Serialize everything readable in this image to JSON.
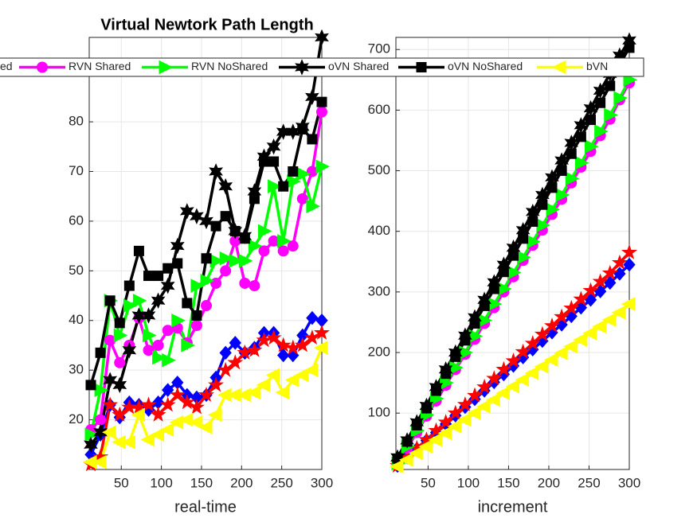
{
  "chart_data": [
    {
      "type": "line",
      "title": "Virtual Newtork Path Length",
      "xlabel": "real-time",
      "x": [
        12,
        24,
        36,
        48,
        60,
        72,
        84,
        96,
        108,
        120,
        132,
        144,
        156,
        168,
        180,
        192,
        204,
        216,
        228,
        240,
        252,
        264,
        276,
        288,
        300
      ],
      "xlim": [
        10,
        300
      ],
      "ylim": [
        10,
        97
      ],
      "xticks": [
        50,
        100,
        150,
        200,
        250,
        300
      ],
      "yticks": [
        20,
        30,
        40,
        50,
        60,
        70,
        80
      ],
      "grid": true,
      "series": [
        {
          "color": "#0000ff",
          "marker": "diamond",
          "values": [
            13,
            17,
            23,
            20.5,
            23.5,
            23,
            22,
            23.5,
            26,
            27.5,
            25,
            24.5,
            25,
            28.5,
            33.5,
            35.5,
            33.5,
            34.5,
            37.5,
            37.5,
            33,
            33,
            37,
            40.5,
            40
          ]
        },
        {
          "name": "ed",
          "color": "#ff0000",
          "marker": "star",
          "values": [
            11,
            12.5,
            23,
            21,
            22.5,
            22.5,
            23,
            21,
            23,
            25,
            23.5,
            22.5,
            25,
            27,
            30,
            31.5,
            33.5,
            34,
            36,
            36.5,
            35,
            34.5,
            35,
            36.5,
            37.5
          ]
        },
        {
          "name": "RVN Shared",
          "color": "#ff00ff",
          "marker": "circle",
          "values": [
            18,
            20,
            36,
            31.5,
            35,
            40.5,
            34,
            35,
            38,
            38.5,
            35.5,
            39,
            43,
            47.5,
            50,
            56,
            47.5,
            47,
            54,
            56,
            54,
            55,
            64.5,
            70,
            82
          ]
        },
        {
          "name": "RVN NoShared",
          "color": "#00ff00",
          "marker": "triangle-right",
          "values": [
            17,
            26,
            44,
            37,
            43,
            44,
            37,
            32.5,
            32,
            40,
            35,
            47,
            48,
            52,
            52.5,
            52,
            52,
            55,
            58,
            67,
            56,
            68,
            69.5,
            63,
            71
          ]
        },
        {
          "name": "oVN Shared",
          "color": "#000000",
          "marker": "hexagram",
          "values": [
            15,
            17.5,
            28,
            27,
            34,
            41,
            41,
            44,
            47,
            55,
            62,
            61,
            60,
            70,
            67,
            58,
            57,
            66,
            73,
            75,
            78,
            78,
            79,
            85,
            97
          ]
        },
        {
          "name": "oVN NoShared",
          "color": "#000000",
          "marker": "square",
          "values": [
            27,
            33.5,
            44,
            39.5,
            47,
            54,
            49,
            49,
            50.5,
            51.5,
            43.5,
            41,
            52.5,
            59,
            61,
            58,
            56.5,
            64.5,
            72,
            72,
            67,
            70,
            78.5,
            76.5,
            84
          ]
        },
        {
          "name": "bVN",
          "color": "#ffff00",
          "marker": "triangle-left",
          "values": [
            11.5,
            11.5,
            17.5,
            15.5,
            15.5,
            21,
            16,
            17,
            18,
            19.5,
            20,
            19.5,
            18.5,
            21,
            25,
            25,
            25,
            25.5,
            27,
            29,
            25.5,
            28,
            29,
            30,
            34.5
          ]
        }
      ]
    },
    {
      "type": "line",
      "xlabel": "increment",
      "x": [
        12,
        24,
        36,
        48,
        60,
        72,
        84,
        96,
        108,
        120,
        132,
        144,
        156,
        168,
        180,
        192,
        204,
        216,
        228,
        240,
        252,
        264,
        276,
        288,
        300
      ],
      "xlim": [
        10,
        300
      ],
      "ylim": [
        7,
        720
      ],
      "xticks": [
        50,
        100,
        150,
        200,
        250,
        300
      ],
      "yticks": [
        100,
        200,
        300,
        400,
        500,
        600,
        700
      ],
      "grid": true,
      "series": [
        {
          "color": "#0000ff",
          "marker": "diamond",
          "values": [
            13,
            27,
            41,
            55,
            68,
            82,
            96,
            110,
            123,
            137,
            151,
            164,
            178,
            192,
            205,
            219,
            233,
            246,
            260,
            274,
            287,
            301,
            315,
            330,
            345
          ]
        },
        {
          "color": "#ff0000",
          "marker": "star",
          "values": [
            13,
            27,
            42,
            56,
            71,
            85,
            100,
            114,
            129,
            143,
            157,
            172,
            186,
            201,
            215,
            230,
            244,
            259,
            273,
            288,
            302,
            317,
            331,
            348,
            365
          ]
        },
        {
          "color": "#ff00ff",
          "marker": "circle",
          "values": [
            17,
            42,
            68,
            95,
            120,
            146,
            172,
            197,
            222,
            248,
            274,
            300,
            325,
            352,
            377,
            402,
            428,
            453,
            480,
            506,
            532,
            558,
            585,
            617,
            645
          ]
        },
        {
          "color": "#00ff00",
          "marker": "triangle-right",
          "values": [
            17,
            45,
            71,
            97,
            124,
            150,
            175,
            200,
            227,
            253,
            280,
            305,
            332,
            357,
            383,
            410,
            436,
            460,
            487,
            513,
            540,
            565,
            592,
            620,
            650
          ]
        },
        {
          "color": "#000000",
          "marker": "hexagram",
          "values": [
            27,
            55,
            85,
            112,
            143,
            172,
            200,
            228,
            258,
            287,
            316,
            345,
            373,
            402,
            432,
            460,
            489,
            517,
            546,
            575,
            603,
            632,
            660,
            690,
            715
          ]
        },
        {
          "color": "#000000",
          "marker": "square",
          "values": [
            25,
            53,
            80,
            108,
            137,
            165,
            193,
            220,
            248,
            277,
            305,
            333,
            360,
            388,
            416,
            444,
            472,
            500,
            528,
            556,
            584,
            612,
            640,
            675,
            703
          ]
        },
        {
          "color": "#ffff00",
          "marker": "triangle-left",
          "values": [
            12,
            23,
            34,
            45,
            56,
            67,
            78,
            89,
            100,
            111,
            122,
            133,
            144,
            155,
            166,
            177,
            188,
            199,
            210,
            221,
            232,
            243,
            254,
            266,
            280
          ]
        }
      ]
    }
  ]
}
